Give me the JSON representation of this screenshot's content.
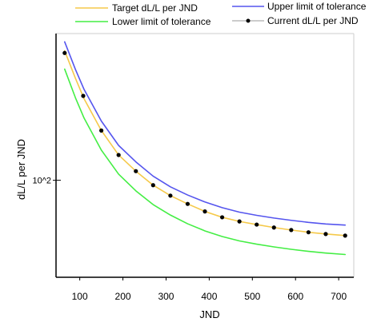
{
  "chart_data": {
    "type": "line",
    "title": "",
    "xlabel": "JND",
    "ylabel": "dL/L per JND",
    "x_ticks": [
      "100",
      "200",
      "300",
      "400",
      "500",
      "600",
      "700"
    ],
    "y_ticks": [
      {
        "label": "10^2",
        "value": 100
      }
    ],
    "xlim": [
      45,
      735
    ],
    "ylog": true,
    "ylim": [
      40,
      400
    ],
    "grid": false,
    "legend_position": "top",
    "series": [
      {
        "name": "Target dL/L per JND",
        "style": "line",
        "color": "#f5c94a",
        "x": [
          65,
          90,
          110,
          150,
          190,
          230,
          270,
          310,
          350,
          390,
          430,
          470,
          510,
          550,
          590,
          630,
          670,
          715
        ],
        "y": [
          340,
          262,
          216,
          160,
          127,
          109,
          95.5,
          86.5,
          80,
          74.5,
          70.5,
          67.8,
          65.8,
          64,
          62.5,
          61.2,
          60.2,
          59.3
        ]
      },
      {
        "name": "Upper limit of tolerance",
        "style": "line",
        "color": "#5555ee",
        "x": [
          65,
          90,
          110,
          150,
          190,
          230,
          270,
          310,
          350,
          390,
          430,
          470,
          510,
          550,
          590,
          630,
          670,
          715
        ],
        "y": [
          370,
          285,
          236,
          175,
          139,
          119,
          104,
          94,
          87,
          81.5,
          77.2,
          74,
          71.8,
          70,
          68.5,
          67.2,
          66.2,
          65.5
        ]
      },
      {
        "name": "Lower limit of tolerance",
        "style": "line",
        "color": "#44ee44",
        "x": [
          65,
          90,
          110,
          150,
          190,
          230,
          270,
          310,
          350,
          390,
          430,
          470,
          510,
          550,
          590,
          630,
          670,
          715
        ],
        "y": [
          286,
          218,
          180,
          133,
          106,
          90.5,
          79.5,
          72,
          66.3,
          62,
          58.8,
          56.4,
          54.7,
          53.3,
          52.1,
          51.1,
          50.3,
          49.6
        ]
      },
      {
        "name": "Current dL/L per JND",
        "style": "points",
        "color": "#000000",
        "x": [
          65,
          108,
          150,
          190,
          230,
          270,
          310,
          350,
          390,
          430,
          470,
          510,
          550,
          590,
          630,
          670,
          715
        ],
        "y": [
          333,
          222,
          160,
          127,
          109,
          95.5,
          86.5,
          80,
          74.5,
          70.5,
          67.8,
          65.8,
          64,
          62.5,
          61.2,
          60.2,
          59.3
        ]
      }
    ]
  }
}
